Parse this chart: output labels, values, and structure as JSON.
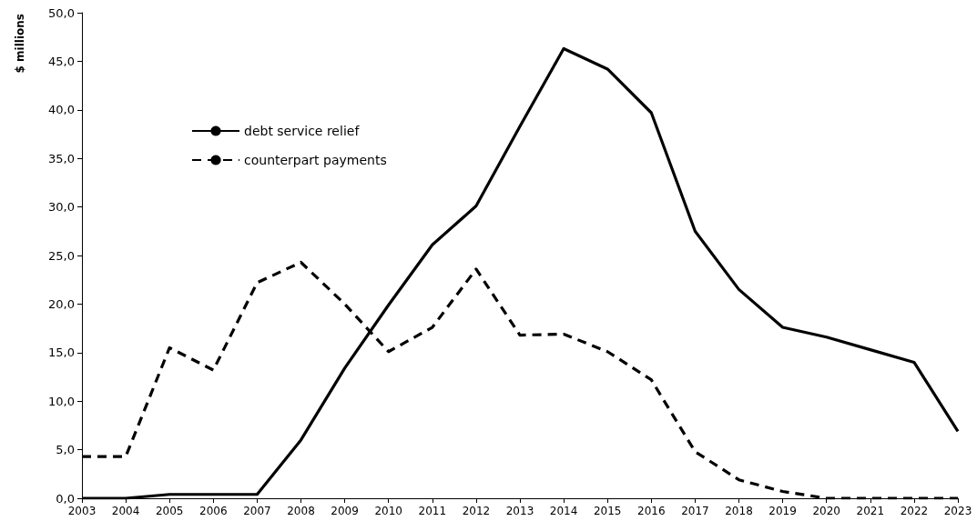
{
  "chart_data": {
    "type": "line",
    "ylabel": "$ millions",
    "categories": [
      "2003",
      "2004",
      "2005",
      "2006",
      "2007",
      "2008",
      "2009",
      "2010",
      "2011",
      "2012",
      "2013",
      "2014",
      "2015",
      "2016",
      "2017",
      "2018",
      "2019",
      "2020",
      "2021",
      "2022",
      "2023"
    ],
    "series": [
      {
        "name": "debt service relief",
        "color": "#000000",
        "line_style": "solid",
        "values": [
          0,
          0,
          0.4,
          0.4,
          0.4,
          6.0,
          13.4,
          19.9,
          26.1,
          30.1,
          38.3,
          46.3,
          44.2,
          39.7,
          27.5,
          21.5,
          17.6,
          16.6,
          15.3,
          14.0,
          6.9
        ]
      },
      {
        "name": "counterpart payments",
        "color": "#000000",
        "line_style": "dashed",
        "values": [
          4.3,
          4.3,
          15.5,
          13.2,
          22.2,
          24.3,
          20.0,
          15.1,
          17.6,
          23.6,
          16.8,
          16.9,
          15.1,
          12.2,
          4.8,
          1.9,
          0.7,
          0,
          0,
          0,
          0
        ]
      }
    ],
    "ylim": [
      0,
      50
    ],
    "yticks": [
      {
        "value": 0,
        "label": "0,0"
      },
      {
        "value": 5,
        "label": "5,0"
      },
      {
        "value": 10,
        "label": "10,0"
      },
      {
        "value": 15,
        "label": "15,0"
      },
      {
        "value": 20,
        "label": "20,0"
      },
      {
        "value": 25,
        "label": "25,0"
      },
      {
        "value": 30,
        "label": "30,0"
      },
      {
        "value": 35,
        "label": "35,0"
      },
      {
        "value": 40,
        "label": "40,0"
      },
      {
        "value": 45,
        "label": "45,0"
      },
      {
        "value": 50,
        "label": "50,0"
      }
    ],
    "grid": false,
    "legend": "top left",
    "marker": "none"
  }
}
